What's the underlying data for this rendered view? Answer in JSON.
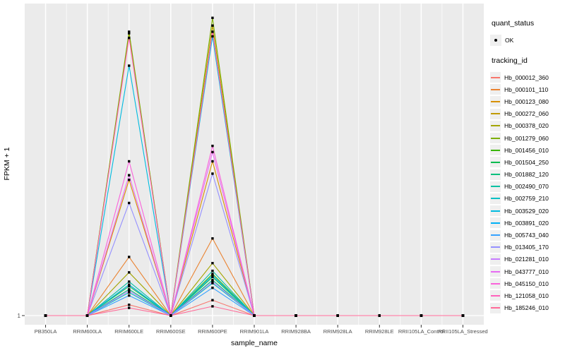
{
  "figure": {
    "panel_bg": "#EBEBEB",
    "grid_color": "#FFFFFF",
    "axis_text_color": "#4D4D4D",
    "tick_color": "#333333",
    "point_color": "#000000",
    "legend_key_bg": "#EFEFEF"
  },
  "axes": {
    "x_title": "sample_name",
    "y_title": "FPKM + 1",
    "y_tick_label": "1"
  },
  "legend": {
    "quant_title": "quant_status",
    "quant_ok_label": "OK",
    "tracking_title": "tracking_id"
  },
  "chart_data": {
    "type": "line",
    "title": "",
    "xlabel": "sample_name",
    "ylabel": "FPKM + 1",
    "y_tick_labels": [
      "1"
    ],
    "legend_position": "right",
    "grid": true,
    "value_scale": "relative expression height above baseline FPKM+1=1 (fraction of panel height; only labeled y tick is 1)",
    "x": [
      "PB350LA",
      "RRIM600LA",
      "RRIM600LE",
      "RRIM600SE",
      "RRIM600PE",
      "RRIM901LA",
      "RRIM928BA",
      "RRIM928LA",
      "RRIM928LE",
      "RRII105LA_Control",
      "RRII105LA_Stressed"
    ],
    "quant_status_points": "every sample point of every series is marked with a black OK point",
    "series": [
      {
        "name": "Hb_000012_360",
        "color": "#F8766D",
        "values": [
          0,
          0,
          0.035,
          0,
          0.05,
          0,
          0,
          0,
          0,
          0,
          0
        ]
      },
      {
        "name": "Hb_000101_110",
        "color": "#EA8331",
        "values": [
          0,
          0,
          0.19,
          0,
          0.25,
          0,
          0,
          0,
          0,
          0,
          0
        ]
      },
      {
        "name": "Hb_000123_080",
        "color": "#D89000",
        "values": [
          0,
          0,
          0.44,
          0,
          0.5,
          0,
          0,
          0,
          0,
          0,
          0
        ]
      },
      {
        "name": "Hb_000272_060",
        "color": "#C09B00",
        "values": [
          0,
          0,
          0.915,
          0,
          0.94,
          0,
          0,
          0,
          0,
          0,
          0
        ]
      },
      {
        "name": "Hb_000378_020",
        "color": "#A3A500",
        "values": [
          0,
          0,
          0.14,
          0,
          0.17,
          0,
          0,
          0,
          0,
          0,
          0
        ]
      },
      {
        "name": "Hb_001279_060",
        "color": "#7CAE00",
        "values": [
          0,
          0,
          0.92,
          0,
          0.965,
          0,
          0,
          0,
          0,
          0,
          0
        ]
      },
      {
        "name": "Hb_001456_010",
        "color": "#39B600",
        "values": [
          0,
          0,
          0.1,
          0,
          0.135,
          0,
          0,
          0,
          0,
          0,
          0
        ]
      },
      {
        "name": "Hb_001504_250",
        "color": "#00BB4E",
        "values": [
          0,
          0,
          0.095,
          0,
          0.125,
          0,
          0,
          0,
          0,
          0,
          0
        ]
      },
      {
        "name": "Hb_001882_120",
        "color": "#00BF7D",
        "values": [
          0,
          0,
          0.085,
          0,
          0.115,
          0,
          0,
          0,
          0,
          0,
          0
        ]
      },
      {
        "name": "Hb_002490_070",
        "color": "#00C1A3",
        "values": [
          0,
          0,
          0.11,
          0,
          0.145,
          0,
          0,
          0,
          0,
          0,
          0
        ]
      },
      {
        "name": "Hb_002759_210",
        "color": "#00BFC4",
        "values": [
          0,
          0,
          0.075,
          0,
          0.105,
          0,
          0,
          0,
          0,
          0,
          0
        ]
      },
      {
        "name": "Hb_003529_020",
        "color": "#00BAE0",
        "values": [
          0,
          0,
          0.81,
          0,
          0.905,
          0,
          0,
          0,
          0,
          0,
          0
        ]
      },
      {
        "name": "Hb_003891_020",
        "color": "#00B0F6",
        "values": [
          0,
          0,
          0.1,
          0,
          0.13,
          0,
          0,
          0,
          0,
          0,
          0
        ]
      },
      {
        "name": "Hb_005743_040",
        "color": "#35A2FF",
        "values": [
          0,
          0,
          0.065,
          0,
          0.09,
          0,
          0,
          0,
          0,
          0,
          0
        ]
      },
      {
        "name": "Hb_013405_170",
        "color": "#9590FF",
        "values": [
          0,
          0,
          0.365,
          0,
          0.46,
          0,
          0,
          0,
          0,
          0,
          0
        ]
      },
      {
        "name": "Hb_021281_010",
        "color": "#C77CFF",
        "values": [
          0,
          0,
          0.08,
          0,
          0.11,
          0,
          0,
          0,
          0,
          0,
          0
        ]
      },
      {
        "name": "Hb_043777_010",
        "color": "#E76BF3",
        "values": [
          0,
          0,
          0.455,
          0,
          0.53,
          0,
          0,
          0,
          0,
          0,
          0
        ]
      },
      {
        "name": "Hb_045150_010",
        "color": "#FA62DB",
        "values": [
          0,
          0,
          0.5,
          0,
          0.55,
          0,
          0,
          0,
          0,
          0,
          0
        ]
      },
      {
        "name": "Hb_121058_010",
        "color": "#FF62BC",
        "values": [
          0,
          0,
          0.9,
          0,
          0.92,
          0,
          0,
          0,
          0,
          0,
          0
        ]
      },
      {
        "name": "Hb_185246_010",
        "color": "#FF6A98",
        "values": [
          0,
          0,
          0.025,
          0,
          0.03,
          0,
          0,
          0,
          0,
          0,
          0
        ]
      }
    ]
  }
}
